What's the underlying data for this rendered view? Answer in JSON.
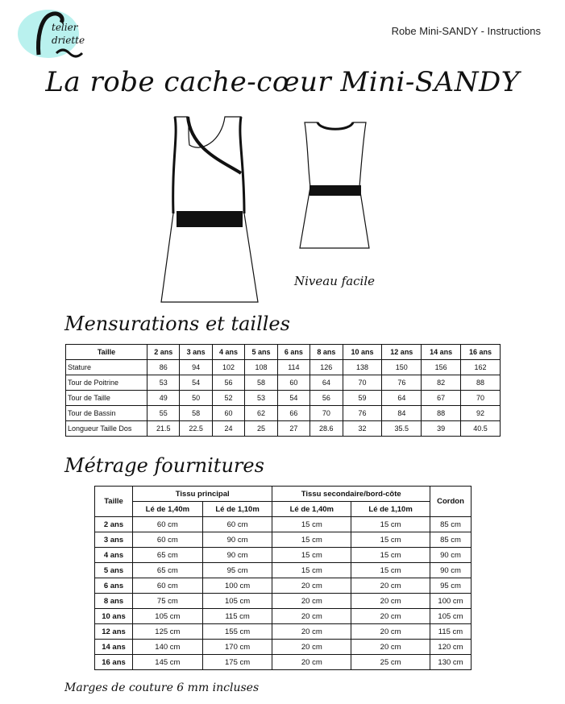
{
  "header": {
    "title": "Robe Mini-SANDY - Instructions",
    "logo_text": "L'Atelier d'Adriette"
  },
  "main_title": "La robe cache-cœur Mini-SANDY",
  "level": "Niveau facile",
  "measurements": {
    "title": "Mensurations et tailles",
    "header_label": "Taille",
    "sizes": [
      "2 ans",
      "3 ans",
      "4 ans",
      "5 ans",
      "6 ans",
      "8 ans",
      "10 ans",
      "12 ans",
      "14 ans",
      "16 ans"
    ],
    "rows": [
      {
        "label": "Stature",
        "values": [
          "86",
          "94",
          "102",
          "108",
          "114",
          "126",
          "138",
          "150",
          "156",
          "162"
        ]
      },
      {
        "label": "Tour de Poitrine",
        "values": [
          "53",
          "54",
          "56",
          "58",
          "60",
          "64",
          "70",
          "76",
          "82",
          "88"
        ]
      },
      {
        "label": "Tour de Taille",
        "values": [
          "49",
          "50",
          "52",
          "53",
          "54",
          "56",
          "59",
          "64",
          "67",
          "70"
        ]
      },
      {
        "label": "Tour de Bassin",
        "values": [
          "55",
          "58",
          "60",
          "62",
          "66",
          "70",
          "76",
          "84",
          "88",
          "92"
        ]
      },
      {
        "label": "Longueur Taille Dos",
        "values": [
          "21.5",
          "22.5",
          "24",
          "25",
          "27",
          "28.6",
          "32",
          "35.5",
          "39",
          "40.5"
        ]
      }
    ]
  },
  "fabric": {
    "title": "Métrage fournitures",
    "col_size": "Taille",
    "group_main": "Tissu principal",
    "group_secondary": "Tissu secondaire/bord-côte",
    "col_cord": "Cordon",
    "sub_140": "Lé de 1,40m",
    "sub_110": "Lé de 1,10m",
    "rows": [
      [
        "2 ans",
        "60 cm",
        "60 cm",
        "15 cm",
        "15 cm",
        "85 cm"
      ],
      [
        "3 ans",
        "60 cm",
        "90 cm",
        "15 cm",
        "15 cm",
        "85 cm"
      ],
      [
        "4 ans",
        "65 cm",
        "90 cm",
        "15 cm",
        "15 cm",
        "90 cm"
      ],
      [
        "5 ans",
        "65 cm",
        "95 cm",
        "15 cm",
        "15 cm",
        "90 cm"
      ],
      [
        "6 ans",
        "60 cm",
        "100 cm",
        "20 cm",
        "20 cm",
        "95 cm"
      ],
      [
        "8 ans",
        "75 cm",
        "105 cm",
        "20 cm",
        "20 cm",
        "100 cm"
      ],
      [
        "10 ans",
        "105 cm",
        "115 cm",
        "20 cm",
        "20 cm",
        "105 cm"
      ],
      [
        "12 ans",
        "125 cm",
        "155 cm",
        "20 cm",
        "20 cm",
        "115 cm"
      ],
      [
        "14 ans",
        "140 cm",
        "170 cm",
        "20 cm",
        "20 cm",
        "120 cm"
      ],
      [
        "16 ans",
        "145 cm",
        "175 cm",
        "20 cm",
        "25 cm",
        "130 cm"
      ]
    ]
  },
  "note": "Marges de couture 6 mm incluses"
}
